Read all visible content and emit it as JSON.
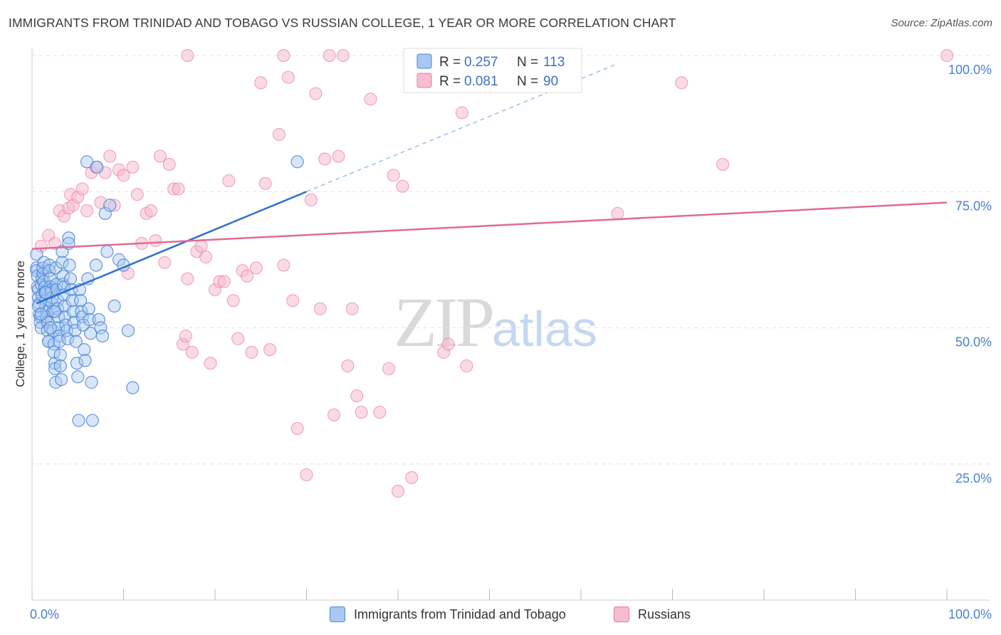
{
  "header": {
    "title": "IMMIGRANTS FROM TRINIDAD AND TOBAGO VS RUSSIAN COLLEGE, 1 YEAR OR MORE CORRELATION CHART",
    "source": "Source: ZipAtlas.com"
  },
  "watermark": {
    "zip": "ZIP",
    "atlas": "atlas"
  },
  "legend": {
    "r_label": "R =",
    "n_label": "N =",
    "series": [
      {
        "r_value": "0.257",
        "n_value": "113"
      },
      {
        "r_value": "0.081",
        "n_value": "90"
      }
    ]
  },
  "bottom_legend": {
    "series_a": "Immigrants from Trinidad and Tobago",
    "series_b": "Russians"
  },
  "chart_data": {
    "type": "scatter",
    "title": "IMMIGRANTS FROM TRINIDAD AND TOBAGO VS RUSSIAN COLLEGE, 1 YEAR OR MORE CORRELATION CHART",
    "xlabel": "",
    "ylabel": "College, 1 year or more",
    "xlim": [
      0,
      100
    ],
    "ylim": [
      0,
      100
    ],
    "x_tick_labels": [
      "0.0%",
      "100.0%"
    ],
    "y_ticks": [
      25,
      50,
      75,
      100
    ],
    "y_tick_labels": [
      "25.0%",
      "50.0%",
      "75.0%",
      "100.0%"
    ],
    "grid": true,
    "colors": {
      "blue": "#4a86d8",
      "blue_fill": "#a9c8f0",
      "pink": "#e8789c",
      "pink_fill": "#f6bcd0",
      "tick": "#4a7fd4"
    },
    "series": [
      {
        "name": "Immigrants from Trinidad and Tobago",
        "color": "#4a86d8",
        "r": 0.257,
        "n": 113,
        "trend": {
          "x0": 0.5,
          "y0": 54.5,
          "x1": 30,
          "y1": 75,
          "dash_x1": 64,
          "dash_y1": 98.5
        },
        "points": [
          [
            0.5,
            63.5
          ],
          [
            0.5,
            61
          ],
          [
            0.5,
            60.5
          ],
          [
            0.6,
            59.5
          ],
          [
            0.6,
            57.5
          ],
          [
            0.7,
            57
          ],
          [
            0.7,
            55.5
          ],
          [
            0.8,
            54.5
          ],
          [
            0.8,
            52.5
          ],
          [
            0.9,
            52
          ],
          [
            0.9,
            51
          ],
          [
            1.0,
            50
          ],
          [
            1.0,
            58
          ],
          [
            1.1,
            56
          ],
          [
            1.1,
            59
          ],
          [
            1.2,
            60
          ],
          [
            1.2,
            61
          ],
          [
            1.3,
            62
          ],
          [
            1.3,
            58.5
          ],
          [
            1.4,
            57.5
          ],
          [
            1.4,
            56.5
          ],
          [
            1.5,
            55
          ],
          [
            1.5,
            54
          ],
          [
            1.6,
            53
          ],
          [
            1.6,
            52
          ],
          [
            1.7,
            51
          ],
          [
            1.7,
            49.5
          ],
          [
            1.8,
            47.5
          ],
          [
            1.8,
            47.5
          ],
          [
            1.9,
            61.5
          ],
          [
            1.9,
            60.5
          ],
          [
            2.0,
            59
          ],
          [
            2.0,
            57.5
          ],
          [
            2.1,
            57
          ],
          [
            2.1,
            56.5
          ],
          [
            2.2,
            55.5
          ],
          [
            2.2,
            54.5
          ],
          [
            2.3,
            53
          ],
          [
            2.3,
            49.5
          ],
          [
            2.4,
            47
          ],
          [
            2.4,
            45.5
          ],
          [
            2.5,
            43.5
          ],
          [
            2.5,
            42.5
          ],
          [
            2.6,
            40
          ],
          [
            2.6,
            61
          ],
          [
            2.7,
            58
          ],
          [
            2.7,
            57
          ],
          [
            2.8,
            55
          ],
          [
            2.8,
            53.5
          ],
          [
            2.9,
            52
          ],
          [
            2.9,
            50
          ],
          [
            3.0,
            48.5
          ],
          [
            3.0,
            47.5
          ],
          [
            3.1,
            45
          ],
          [
            3.1,
            43
          ],
          [
            3.2,
            40.5
          ],
          [
            3.3,
            64
          ],
          [
            3.3,
            62
          ],
          [
            3.4,
            59.5
          ],
          [
            3.4,
            58
          ],
          [
            3.5,
            57.5
          ],
          [
            3.5,
            56
          ],
          [
            3.6,
            54
          ],
          [
            3.6,
            52
          ],
          [
            3.7,
            50.5
          ],
          [
            3.8,
            49.5
          ],
          [
            3.9,
            48
          ],
          [
            4.0,
            66.5
          ],
          [
            4.0,
            65.5
          ],
          [
            4.1,
            61.5
          ],
          [
            4.2,
            59
          ],
          [
            4.3,
            57
          ],
          [
            4.4,
            55
          ],
          [
            4.5,
            53
          ],
          [
            4.6,
            51
          ],
          [
            4.7,
            49.5
          ],
          [
            4.8,
            47.5
          ],
          [
            4.9,
            43.5
          ],
          [
            5.0,
            41
          ],
          [
            5.1,
            33
          ],
          [
            5.2,
            57
          ],
          [
            5.3,
            55
          ],
          [
            5.4,
            53
          ],
          [
            5.5,
            52
          ],
          [
            5.6,
            50.5
          ],
          [
            5.7,
            46
          ],
          [
            5.8,
            44
          ],
          [
            6.0,
            80.5
          ],
          [
            6.1,
            59
          ],
          [
            6.2,
            53.5
          ],
          [
            6.3,
            51.5
          ],
          [
            6.4,
            49
          ],
          [
            6.5,
            40
          ],
          [
            6.6,
            33
          ],
          [
            7.0,
            61.5
          ],
          [
            7.1,
            79.5
          ],
          [
            7.3,
            51.5
          ],
          [
            7.5,
            50
          ],
          [
            7.7,
            48.5
          ],
          [
            8.0,
            71
          ],
          [
            8.2,
            64
          ],
          [
            8.5,
            72.5
          ],
          [
            9.0,
            54
          ],
          [
            9.5,
            62.5
          ],
          [
            10.0,
            61.5
          ],
          [
            10.5,
            49.5
          ],
          [
            11.0,
            39
          ],
          [
            0.7,
            54
          ],
          [
            1.0,
            52.5
          ],
          [
            1.5,
            56.5
          ],
          [
            2.0,
            50
          ],
          [
            2.5,
            53
          ],
          [
            29.0,
            80.5
          ]
        ]
      },
      {
        "name": "Russians",
        "color": "#e8789c",
        "r": 0.081,
        "n": 90,
        "trend": {
          "x0": 0,
          "y0": 64.5,
          "x1": 100,
          "y1": 73
        },
        "points": [
          [
            1.0,
            65
          ],
          [
            1.5,
            51.5
          ],
          [
            1.8,
            67
          ],
          [
            2.5,
            65.5
          ],
          [
            3.0,
            71.5
          ],
          [
            3.5,
            70.5
          ],
          [
            4.0,
            72
          ],
          [
            4.2,
            74.5
          ],
          [
            4.5,
            72.5
          ],
          [
            5.0,
            74
          ],
          [
            5.5,
            75.5
          ],
          [
            6.0,
            71.5
          ],
          [
            6.5,
            78.5
          ],
          [
            7.0,
            79.5
          ],
          [
            7.5,
            73
          ],
          [
            8.0,
            78.5
          ],
          [
            8.5,
            81.5
          ],
          [
            9.0,
            72.5
          ],
          [
            9.5,
            79
          ],
          [
            10.0,
            78
          ],
          [
            10.5,
            60
          ],
          [
            11.0,
            79.5
          ],
          [
            11.5,
            74.5
          ],
          [
            12.0,
            65.5
          ],
          [
            12.5,
            71
          ],
          [
            13.0,
            71.5
          ],
          [
            13.5,
            66
          ],
          [
            14.0,
            81.5
          ],
          [
            14.5,
            62
          ],
          [
            15.0,
            80
          ],
          [
            15.5,
            75.5
          ],
          [
            16.0,
            75.5
          ],
          [
            16.5,
            47
          ],
          [
            16.8,
            48.5
          ],
          [
            17.0,
            59
          ],
          [
            17.5,
            45.5
          ],
          [
            18.0,
            64
          ],
          [
            18.5,
            65
          ],
          [
            19.0,
            63
          ],
          [
            19.5,
            43.5
          ],
          [
            20.0,
            57
          ],
          [
            20.5,
            58.5
          ],
          [
            21.0,
            58.5
          ],
          [
            21.5,
            77
          ],
          [
            22.0,
            55
          ],
          [
            22.5,
            48
          ],
          [
            23.0,
            60.5
          ],
          [
            23.5,
            59.5
          ],
          [
            24.0,
            45.5
          ],
          [
            24.5,
            61
          ],
          [
            25.0,
            95
          ],
          [
            25.5,
            76.5
          ],
          [
            26.0,
            46
          ],
          [
            27.0,
            85.5
          ],
          [
            27.5,
            61.5
          ],
          [
            28.0,
            96
          ],
          [
            28.5,
            55
          ],
          [
            29.0,
            31.5
          ],
          [
            30.0,
            23
          ],
          [
            30.5,
            73.5
          ],
          [
            31.0,
            93
          ],
          [
            31.5,
            53.5
          ],
          [
            32.0,
            81
          ],
          [
            32.5,
            100
          ],
          [
            33.0,
            34
          ],
          [
            33.5,
            81.5
          ],
          [
            34.0,
            100
          ],
          [
            34.5,
            43
          ],
          [
            35.0,
            53.5
          ],
          [
            35.5,
            37.5
          ],
          [
            36.0,
            34.5
          ],
          [
            37.0,
            92
          ],
          [
            38.0,
            34.5
          ],
          [
            39.0,
            42.5
          ],
          [
            39.5,
            78
          ],
          [
            40.0,
            20
          ],
          [
            40.5,
            76
          ],
          [
            41.5,
            22.5
          ],
          [
            45.0,
            45.5
          ],
          [
            45.5,
            47
          ],
          [
            47.0,
            89.5
          ],
          [
            47.5,
            43
          ],
          [
            50.0,
            100
          ],
          [
            51.0,
            100
          ],
          [
            64.0,
            71
          ],
          [
            71.0,
            95
          ],
          [
            75.5,
            80
          ],
          [
            100.0,
            100
          ],
          [
            17.0,
            100
          ],
          [
            27.5,
            100
          ]
        ]
      }
    ]
  }
}
